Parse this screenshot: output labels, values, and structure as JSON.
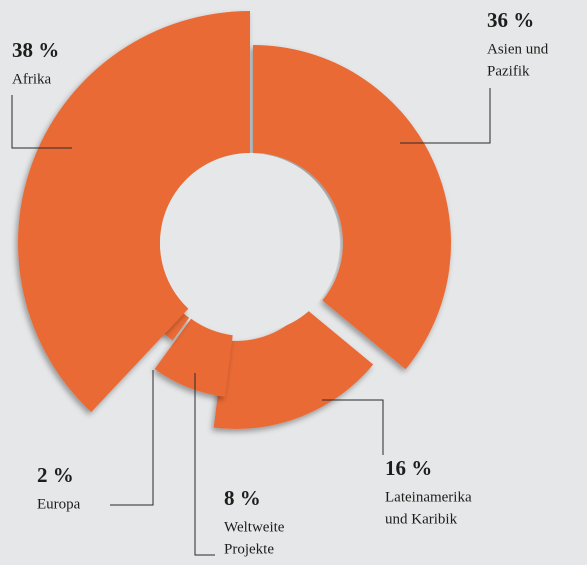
{
  "chart_data": {
    "type": "donut",
    "categories": [
      [
        "Asien und",
        "Pazifik"
      ],
      [
        "Lateinamerika",
        "und Karibik"
      ],
      [
        "Weltweite",
        "Projekte"
      ],
      [
        "Europa"
      ],
      [
        "Afrika"
      ]
    ],
    "values": [
      36,
      16,
      8,
      2,
      38
    ],
    "value_labels": [
      "36 %",
      "16 %",
      "8 %",
      "2 %",
      "38 %"
    ],
    "color": "#e96b36"
  }
}
